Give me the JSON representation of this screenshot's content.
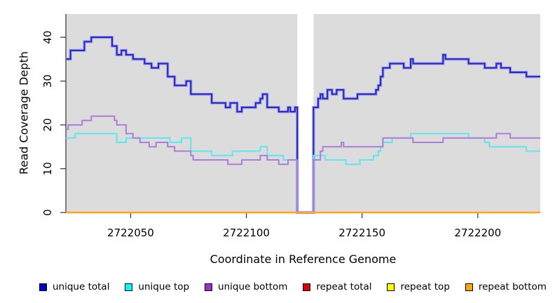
{
  "chart_data": {
    "type": "line",
    "step": true,
    "title": "",
    "xlabel": "Coordinate in Reference Genome",
    "ylabel": "Read Coverage Depth",
    "xlim": [
      2722022,
      2722227
    ],
    "ylim": [
      0,
      45.3
    ],
    "x_ticks": [
      2722050,
      2722100,
      2722150,
      2722200
    ],
    "y_ticks": [
      0,
      10,
      20,
      30,
      40
    ],
    "plot_background": "#dcdcdc",
    "page_background": "#ffffff",
    "gap_region": {
      "x_start": 2722122,
      "x_end": 2722129,
      "fill": "#ffffff",
      "note": "vertical white band where all coverage drops to 0"
    },
    "legend_position": "bottom",
    "grid": false,
    "series": [
      {
        "name": "unique total",
        "color": "#2323c8",
        "halo": "#a2a2e8",
        "width": 2,
        "points": [
          [
            2722022,
            35
          ],
          [
            2722024,
            37
          ],
          [
            2722030,
            39
          ],
          [
            2722033,
            40
          ],
          [
            2722042,
            38
          ],
          [
            2722044,
            36
          ],
          [
            2722046,
            37
          ],
          [
            2722048,
            36
          ],
          [
            2722051,
            35
          ],
          [
            2722056,
            34
          ],
          [
            2722059,
            33
          ],
          [
            2722062,
            34
          ],
          [
            2722066,
            31
          ],
          [
            2722069,
            29
          ],
          [
            2722074,
            30
          ],
          [
            2722076,
            27
          ],
          [
            2722085,
            25
          ],
          [
            2722091,
            24
          ],
          [
            2722093,
            25
          ],
          [
            2722096,
            23
          ],
          [
            2722098,
            24
          ],
          [
            2722104,
            25
          ],
          [
            2722106,
            26
          ],
          [
            2722107,
            27
          ],
          [
            2722109,
            24
          ],
          [
            2722114,
            23
          ],
          [
            2722118,
            24
          ],
          [
            2722119,
            23
          ],
          [
            2722121,
            24
          ],
          [
            2722122,
            0
          ],
          [
            2722129,
            24
          ],
          [
            2722131,
            26
          ],
          [
            2722132,
            27
          ],
          [
            2722133,
            26
          ],
          [
            2722135,
            28
          ],
          [
            2722137,
            27
          ],
          [
            2722139,
            28
          ],
          [
            2722142,
            26
          ],
          [
            2722148,
            27
          ],
          [
            2722156,
            28
          ],
          [
            2722157,
            29
          ],
          [
            2722158,
            31
          ],
          [
            2722159,
            33
          ],
          [
            2722162,
            34
          ],
          [
            2722168,
            33
          ],
          [
            2722171,
            35
          ],
          [
            2722172,
            34
          ],
          [
            2722185,
            36
          ],
          [
            2722186,
            35
          ],
          [
            2722196,
            34
          ],
          [
            2722203,
            33
          ],
          [
            2722208,
            34
          ],
          [
            2722210,
            33
          ],
          [
            2722214,
            32
          ],
          [
            2722221,
            31
          ]
        ]
      },
      {
        "name": "unique top",
        "color": "#5fe6ee",
        "halo": null,
        "width": 2,
        "points": [
          [
            2722022,
            17
          ],
          [
            2722026,
            18
          ],
          [
            2722044,
            16
          ],
          [
            2722048,
            17
          ],
          [
            2722067,
            16
          ],
          [
            2722072,
            17
          ],
          [
            2722076,
            14
          ],
          [
            2722085,
            13
          ],
          [
            2722094,
            14
          ],
          [
            2722106,
            15
          ],
          [
            2722109,
            13
          ],
          [
            2722116,
            12
          ],
          [
            2722122,
            0
          ],
          [
            2722129,
            13
          ],
          [
            2722134,
            12
          ],
          [
            2722143,
            11
          ],
          [
            2722149,
            12
          ],
          [
            2722155,
            13
          ],
          [
            2722157,
            14
          ],
          [
            2722158,
            15
          ],
          [
            2722159,
            16
          ],
          [
            2722163,
            17
          ],
          [
            2722171,
            18
          ],
          [
            2722196,
            17
          ],
          [
            2722203,
            16
          ],
          [
            2722205,
            15
          ],
          [
            2722221,
            14
          ]
        ]
      },
      {
        "name": "unique bottom",
        "color": "#ae7cd9",
        "halo": null,
        "width": 2,
        "points": [
          [
            2722022,
            19
          ],
          [
            2722023,
            20
          ],
          [
            2722029,
            21
          ],
          [
            2722033,
            22
          ],
          [
            2722043,
            21
          ],
          [
            2722044,
            20
          ],
          [
            2722048,
            18
          ],
          [
            2722051,
            17
          ],
          [
            2722054,
            16
          ],
          [
            2722058,
            15
          ],
          [
            2722061,
            16
          ],
          [
            2722066,
            15
          ],
          [
            2722069,
            14
          ],
          [
            2722076,
            13
          ],
          [
            2722077,
            12
          ],
          [
            2722092,
            11
          ],
          [
            2722098,
            12
          ],
          [
            2722106,
            13
          ],
          [
            2722109,
            12
          ],
          [
            2722114,
            11
          ],
          [
            2722118,
            12
          ],
          [
            2722122,
            0
          ],
          [
            2722129,
            12
          ],
          [
            2722132,
            14
          ],
          [
            2722133,
            15
          ],
          [
            2722141,
            16
          ],
          [
            2722142,
            15
          ],
          [
            2722159,
            17
          ],
          [
            2722172,
            16
          ],
          [
            2722185,
            17
          ],
          [
            2722208,
            18
          ],
          [
            2722214,
            17
          ]
        ]
      },
      {
        "name": "repeat total",
        "color": "#dd0000",
        "halo": null,
        "width": 2,
        "points": [
          [
            2722022,
            0
          ]
        ]
      },
      {
        "name": "repeat top",
        "color": "#ffff00",
        "halo": null,
        "width": 2,
        "points": [
          [
            2722022,
            0
          ]
        ]
      },
      {
        "name": "repeat bottom",
        "color": "#ffa520",
        "halo": null,
        "width": 2.4,
        "points": [
          [
            2722022,
            0
          ]
        ]
      }
    ]
  },
  "legend": {
    "items": [
      {
        "label": "unique total",
        "color": "#0000cd"
      },
      {
        "label": "unique top",
        "color": "#00ffff"
      },
      {
        "label": "unique bottom",
        "color": "#9932cc"
      },
      {
        "label": "repeat total",
        "color": "#dd0000"
      },
      {
        "label": "repeat top",
        "color": "#ffff00"
      },
      {
        "label": "repeat bottom",
        "color": "#ffa500"
      }
    ]
  }
}
